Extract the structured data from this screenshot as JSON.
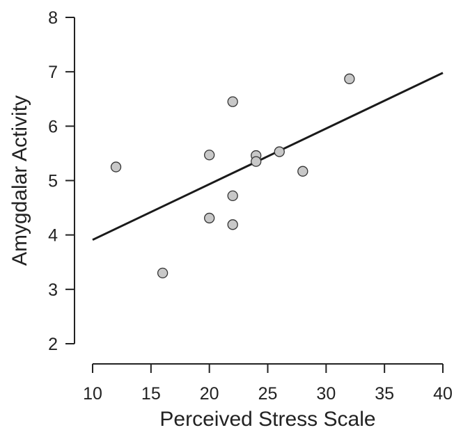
{
  "chart_data": {
    "type": "scatter",
    "title": "",
    "xlabel": "Perceived Stress Scale",
    "ylabel": "Amygdalar Activity",
    "xlim": [
      10,
      40
    ],
    "ylim": [
      2,
      8
    ],
    "x_ticks": [
      10,
      15,
      20,
      25,
      30,
      35,
      40
    ],
    "y_ticks": [
      2,
      3,
      4,
      5,
      6,
      7,
      8
    ],
    "grid": false,
    "series": [
      {
        "points": [
          {
            "x": 12,
            "y": 5.25
          },
          {
            "x": 16,
            "y": 3.3
          },
          {
            "x": 20,
            "y": 5.47
          },
          {
            "x": 20,
            "y": 4.31
          },
          {
            "x": 22,
            "y": 6.45
          },
          {
            "x": 22,
            "y": 4.72
          },
          {
            "x": 22,
            "y": 4.19
          },
          {
            "x": 24,
            "y": 5.46
          },
          {
            "x": 24,
            "y": 5.35
          },
          {
            "x": 26,
            "y": 5.53
          },
          {
            "x": 28,
            "y": 5.17
          },
          {
            "x": 32,
            "y": 6.87
          }
        ]
      }
    ],
    "trend_line": {
      "x": [
        10,
        40
      ],
      "y": [
        3.91,
        6.98
      ]
    }
  }
}
